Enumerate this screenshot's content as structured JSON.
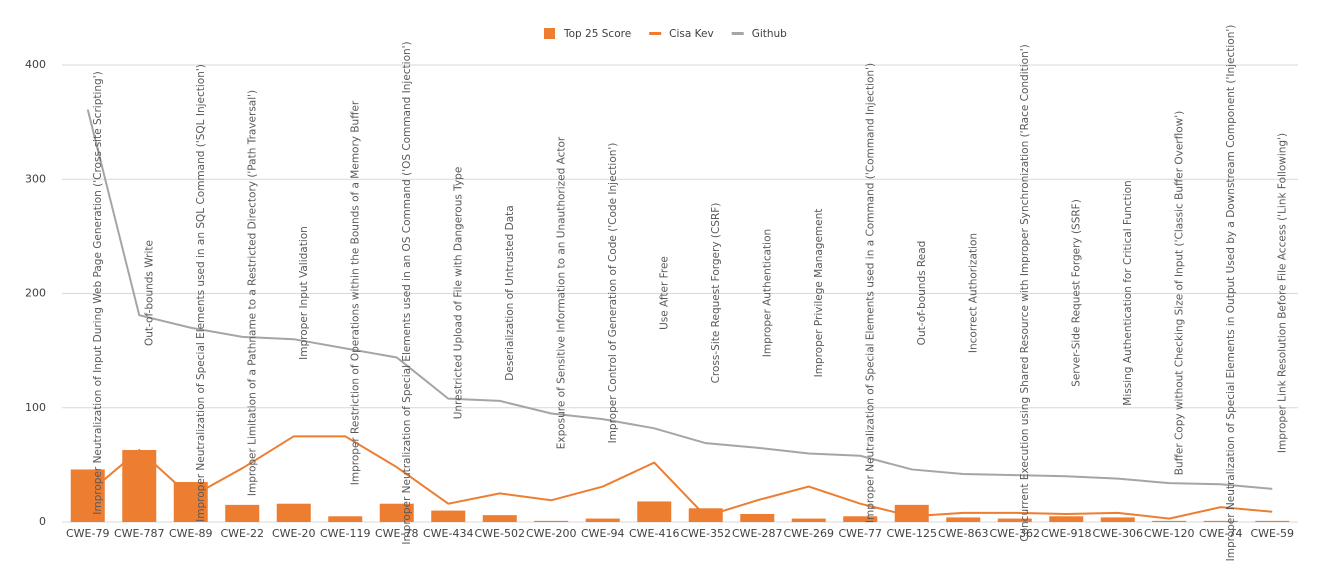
{
  "chart_data": {
    "type": "combo",
    "categories": [
      "CWE-79",
      "CWE-787",
      "CWE-89",
      "CWE-22",
      "CWE-20",
      "CWE-119",
      "CWE-78",
      "CWE-434",
      "CWE-502",
      "CWE-200",
      "CWE-94",
      "CWE-416",
      "CWE-352",
      "CWE-287",
      "CWE-269",
      "CWE-77",
      "CWE-125",
      "CWE-863",
      "CWE-362",
      "CWE-918",
      "CWE-306",
      "CWE-120",
      "CWE-74",
      "CWE-59"
    ],
    "annotations": [
      "Improper Neutralization of Input During Web Page Generation ('Cross-site Scripting')",
      "Out-of-bounds Write",
      "Improper Neutralization of Special Elements used in an SQL Command ('SQL Injection')",
      "Improper Limitation of a Pathname to a Restricted Directory ('Path Traversal')",
      "Improper Input Validation",
      "Improper Restriction of Operations within the Bounds of a Memory Buffer",
      "Improper Neutralization of Special Elements used in an OS Command ('OS Command Injection')",
      "Unrestricted Upload of File with Dangerous Type",
      "Deserialization of Untrusted Data",
      "Exposure of Sensitive Information to an Unauthorized Actor",
      "Improper Control of Generation of Code ('Code Injection')",
      "Use After Free",
      "Cross-Site Request Forgery (CSRF)",
      "Improper Authentication",
      "Improper Privilege Management",
      "Improper Neutralization of Special Elements used in a Command ('Command Injection')",
      "Out-of-bounds Read",
      "Incorrect Authorization",
      "Concurrent Execution using Shared Resource with Improper Synchronization ('Race Condition')",
      "Server-Side Request Forgery (SSRF)",
      "Missing Authentication for Critical Function",
      "Buffer Copy without Checking Size of Input ('Classic Buffer Overflow')",
      "Improper Neutralization of Special Elements in Output Used by a Downstream Component ('Injection')",
      "Improper Link Resolution Before File Access ('Link Following')"
    ],
    "series": [
      {
        "name": "Top 25 Score",
        "type": "bar",
        "color": "#ed7d31",
        "values": [
          46,
          63,
          35,
          15,
          16,
          5,
          16,
          10,
          6,
          1,
          3,
          18,
          12,
          7,
          3,
          5,
          15,
          4,
          3,
          5,
          4,
          1,
          1,
          1
        ]
      },
      {
        "name": "Cisa Kev",
        "type": "line",
        "color": "#ed7d31",
        "values": [
          25,
          63,
          22,
          47,
          75,
          75,
          48,
          16,
          25,
          19,
          31,
          52,
          5,
          19,
          31,
          16,
          5,
          8,
          8,
          7,
          8,
          3,
          13,
          9
        ]
      },
      {
        "name": "Github",
        "type": "line",
        "color": "#a5a5a5",
        "values": [
          361,
          181,
          170,
          162,
          160,
          152,
          144,
          108,
          106,
          95,
          90,
          82,
          69,
          65,
          60,
          58,
          46,
          42,
          41,
          40,
          38,
          34,
          33,
          29
        ]
      }
    ],
    "ylim": [
      0,
      400
    ],
    "yticks": [
      0,
      100,
      200,
      300,
      400
    ],
    "grid": true,
    "legend": "top"
  }
}
